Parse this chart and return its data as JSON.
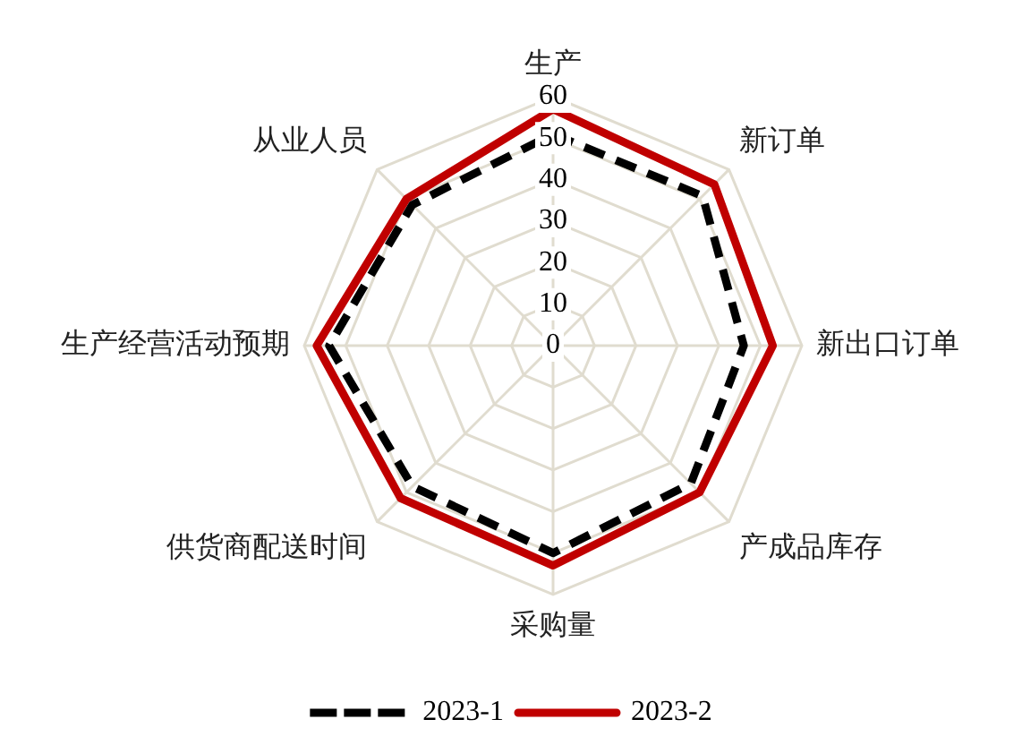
{
  "chart_data": {
    "type": "radar",
    "categories": [
      "生产",
      "新订单",
      "新出口订单",
      "产成品库存",
      "采购量",
      "供货商配送时间",
      "生产经营活动预期",
      "从业人员"
    ],
    "series": [
      {
        "name": "2023-1",
        "color": "#000000",
        "line_style": "dashed",
        "values": [
          51,
          51,
          46,
          47,
          50,
          48,
          54,
          48
        ]
      },
      {
        "name": "2023-2",
        "color": "#c00000",
        "line_style": "solid",
        "values": [
          57,
          55,
          53,
          50,
          53,
          52,
          57,
          50
        ]
      }
    ],
    "ylim": [
      0,
      60
    ],
    "yticks": [
      0,
      10,
      20,
      30,
      40,
      50,
      60
    ],
    "grid": true,
    "legend": "bottom",
    "marker": "none"
  }
}
